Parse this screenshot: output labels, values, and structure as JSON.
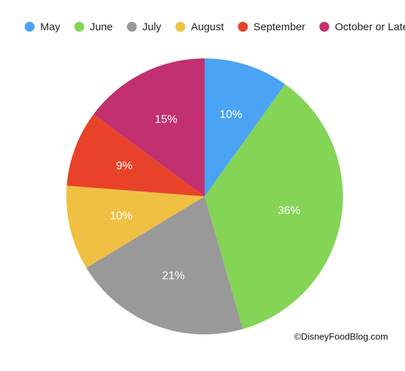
{
  "chart_data": {
    "type": "pie",
    "categories": [
      "May",
      "June",
      "July",
      "August",
      "September",
      "October or Later"
    ],
    "values": [
      10,
      36,
      21,
      10,
      9,
      15
    ],
    "value_labels": [
      "10%",
      "36%",
      "21%",
      "10%",
      "9%",
      "15%"
    ],
    "colors": [
      "#4aa3f5",
      "#84d455",
      "#999999",
      "#f0c043",
      "#e8432a",
      "#c3306f"
    ],
    "legend": "top",
    "credit": "©DisneyFoodBlog.com"
  }
}
